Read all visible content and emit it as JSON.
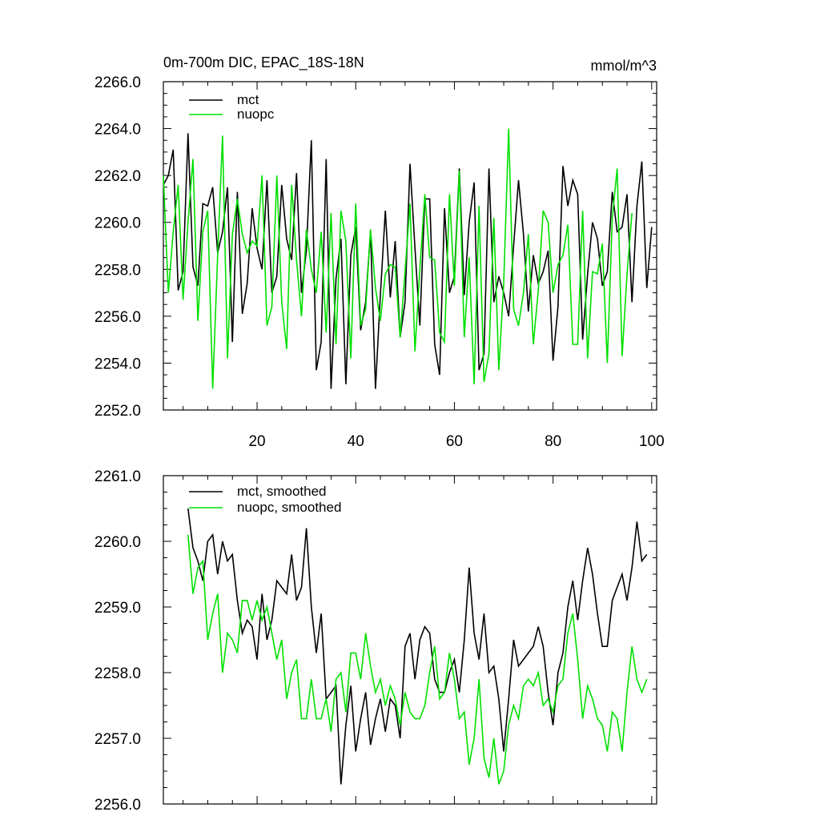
{
  "chart_data": [
    {
      "type": "line",
      "title": "0m-700m DIC, EPAC_18S-18N",
      "units": "mmol/m^3",
      "xlim": [
        1,
        101
      ],
      "ylim": [
        2252.0,
        2266.0
      ],
      "x_ticks": [
        20,
        40,
        60,
        80,
        100
      ],
      "y_ticks": [
        2252.0,
        2254.0,
        2256.0,
        2258.0,
        2260.0,
        2262.0,
        2264.0,
        2266.0
      ],
      "y_tick_labels": [
        "2252.0",
        "2254.0",
        "2256.0",
        "2258.0",
        "2260.0",
        "2262.0",
        "2264.0",
        "2266.0"
      ],
      "x_tick_labels": [
        "20",
        "40",
        "60",
        "80",
        "100"
      ],
      "legend_position": "top-left",
      "series": [
        {
          "name": "mct",
          "color": "#000000",
          "x_start": 1,
          "values": [
            2261.6,
            2262.0,
            2263.1,
            2257.1,
            2257.9,
            2263.8,
            2258.1,
            2257.3,
            2260.8,
            2260.7,
            2261.5,
            2258.7,
            2259.6,
            2261.5,
            2254.9,
            2261.3,
            2256.1,
            2257.4,
            2260.6,
            2258.9,
            2258.0,
            2261.8,
            2257.0,
            2257.7,
            2261.6,
            2259.3,
            2258.4,
            2262.1,
            2257.0,
            2258.8,
            2263.5,
            2253.7,
            2254.9,
            2262.7,
            2252.9,
            2257.6,
            2259.3,
            2253.1,
            2258.6,
            2259.8,
            2255.4,
            2256.6,
            2259.6,
            2252.9,
            2256.9,
            2260.5,
            2256.8,
            2259.2,
            2255.1,
            2256.6,
            2262.5,
            2258.9,
            2255.6,
            2261.0,
            2261.0,
            2254.8,
            2253.5,
            2260.6,
            2257.0,
            2257.7,
            2262.3,
            2256.9,
            2260.0,
            2261.7,
            2253.7,
            2254.4,
            2262.3,
            2256.6,
            2257.7,
            2257.0,
            2256.0,
            2259.0,
            2261.8,
            2259.5,
            2256.2,
            2258.6,
            2257.4,
            2257.9,
            2258.8,
            2254.1,
            2256.4,
            2262.4,
            2260.7,
            2261.8,
            2261.2,
            2255.0,
            2257.8,
            2260.0,
            2259.3,
            2257.3,
            2257.9,
            2261.3,
            2259.6,
            2259.8,
            2261.2,
            2256.6,
            2260.7,
            2262.6,
            2257.2,
            2259.8
          ]
        },
        {
          "name": "nuopc",
          "color": "#00e000",
          "x_start": 1,
          "values": [
            2262.0,
            2257.0,
            2259.6,
            2261.6,
            2256.7,
            2260.0,
            2262.7,
            2255.8,
            2259.6,
            2260.5,
            2252.9,
            2258.6,
            2263.7,
            2254.2,
            2259.5,
            2261.0,
            2259.5,
            2258.7,
            2259.2,
            2259.0,
            2262.0,
            2255.6,
            2256.4,
            2262.0,
            2256.6,
            2254.6,
            2261.6,
            2258.4,
            2256.0,
            2259.7,
            2258.0,
            2257.0,
            2259.6,
            2255.3,
            2260.4,
            2254.8,
            2260.5,
            2259.2,
            2254.2,
            2260.8,
            2255.6,
            2256.3,
            2259.7,
            2257.2,
            2255.8,
            2257.8,
            2258.2,
            2258.1,
            2255.1,
            2257.9,
            2260.8,
            2254.5,
            2258.0,
            2261.2,
            2258.5,
            2258.4,
            2255.3,
            2254.9,
            2261.2,
            2257.3,
            2262.2,
            2255.1,
            2258.5,
            2253.1,
            2260.7,
            2253.2,
            2254.4,
            2260.2,
            2253.7,
            2257.4,
            2264.0,
            2256.3,
            2255.6,
            2257.0,
            2259.5,
            2254.8,
            2257.1,
            2260.5,
            2260.0,
            2257.0,
            2258.2,
            2258.6,
            2259.9,
            2254.8,
            2254.8,
            2260.5,
            2254.2,
            2257.9,
            2257.8,
            2259.1,
            2254.0,
            2260.2,
            2262.3,
            2254.3,
            2257.8,
            2260.4
          ]
        }
      ]
    },
    {
      "type": "line",
      "title": "",
      "xlim": [
        1,
        101
      ],
      "ylim": [
        2256.0,
        2261.0
      ],
      "x_ticks": [
        20,
        40,
        60,
        80,
        100
      ],
      "y_ticks": [
        2256.0,
        2257.0,
        2258.0,
        2259.0,
        2260.0,
        2261.0
      ],
      "y_tick_labels": [
        "2256.0",
        "2257.0",
        "2258.0",
        "2259.0",
        "2260.0",
        "2261.0"
      ],
      "legend_position": "top-left",
      "series": [
        {
          "name": "mct, smoothed",
          "color": "#000000",
          "x_start": 6,
          "values": [
            2260.5,
            2259.9,
            2259.7,
            2259.4,
            2260.0,
            2260.1,
            2259.5,
            2260.0,
            2259.7,
            2259.8,
            2259.1,
            2258.6,
            2258.8,
            2258.7,
            2258.2,
            2259.2,
            2258.5,
            2258.8,
            2259.4,
            2259.3,
            2259.2,
            2259.8,
            2259.1,
            2259.3,
            2260.2,
            2259.0,
            2258.3,
            2258.9,
            2257.6,
            2257.7,
            2257.8,
            2256.3,
            2257.2,
            2257.8,
            2256.8,
            2257.3,
            2257.7,
            2256.9,
            2257.3,
            2257.6,
            2257.1,
            2257.6,
            2257.5,
            2257.0,
            2258.4,
            2258.6,
            2257.9,
            2258.5,
            2258.7,
            2258.6,
            2257.9,
            2257.7,
            2257.7,
            2258.0,
            2258.2,
            2257.7,
            2258.5,
            2259.6,
            2258.6,
            2258.2,
            2258.9,
            2258.0,
            2258.1,
            2257.6,
            2256.8,
            2257.6,
            2258.5,
            2258.1,
            2258.2,
            2258.3,
            2258.4,
            2258.7,
            2258.4,
            2257.7,
            2257.2,
            2258.0,
            2258.3,
            2259.0,
            2259.4,
            2258.8,
            2259.4,
            2259.9,
            2259.5,
            2258.9,
            2258.4,
            2258.4,
            2259.1,
            2259.3,
            2259.5,
            2259.1,
            2259.6,
            2260.3,
            2259.7,
            2259.8
          ]
        },
        {
          "name": "nuopc, smoothed",
          "color": "#00e000",
          "x_start": 6,
          "values": [
            2260.1,
            2259.2,
            2259.6,
            2259.7,
            2258.5,
            2258.9,
            2259.2,
            2258.0,
            2258.6,
            2258.5,
            2258.3,
            2259.1,
            2259.1,
            2258.8,
            2259.1,
            2258.8,
            2259.0,
            2258.6,
            2258.2,
            2258.5,
            2257.6,
            2258.0,
            2258.2,
            2257.3,
            2257.3,
            2257.9,
            2257.3,
            2257.3,
            2257.6,
            2257.1,
            2257.9,
            2258.0,
            2257.4,
            2258.3,
            2258.3,
            2257.9,
            2258.6,
            2258.1,
            2257.7,
            2257.9,
            2257.5,
            2257.8,
            2257.6,
            2257.2,
            2257.7,
            2257.4,
            2257.3,
            2257.3,
            2257.5,
            2258.0,
            2258.4,
            2257.6,
            2257.7,
            2258.3,
            2257.9,
            2257.3,
            2257.4,
            2256.6,
            2257.0,
            2257.9,
            2256.7,
            2256.4,
            2257.0,
            2256.3,
            2256.5,
            2257.2,
            2257.5,
            2257.3,
            2257.8,
            2257.9,
            2257.8,
            2258.0,
            2257.5,
            2257.6,
            2257.4,
            2257.8,
            2257.9,
            2258.6,
            2258.9,
            2258.2,
            2257.3,
            2257.8,
            2257.6,
            2257.3,
            2257.2,
            2256.8,
            2257.4,
            2257.3,
            2256.8,
            2257.7,
            2258.4,
            2257.9,
            2257.7,
            2257.9
          ]
        }
      ]
    }
  ]
}
